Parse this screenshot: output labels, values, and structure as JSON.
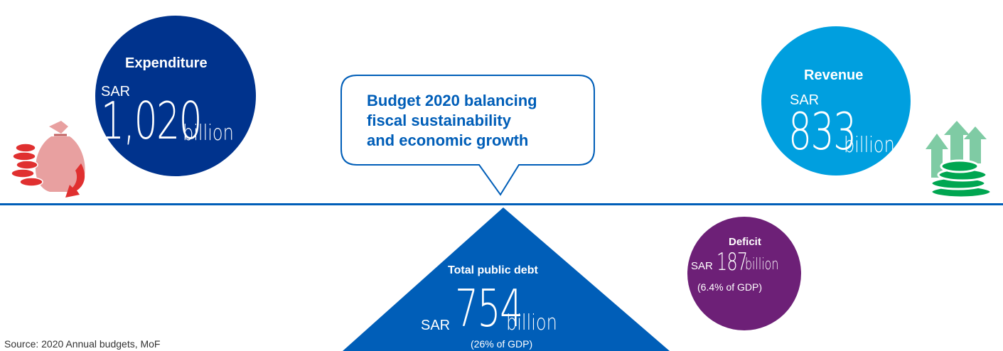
{
  "title": "Budget 2020 balancing fiscal sustainability and economic growth",
  "title_lines": [
    "Budget 2020 balancing",
    "fiscal sustainability",
    "and economic growth"
  ],
  "expenditure": {
    "label": "Expenditure",
    "currency": "SAR",
    "value": "1,020",
    "unit": "billion"
  },
  "revenue": {
    "label": "Revenue",
    "currency": "SAR",
    "value": "833",
    "unit": "billion"
  },
  "deficit": {
    "label": "Deficit",
    "currency": "SAR",
    "value": "187",
    "unit": "billion",
    "note": "(6.4% of GDP)"
  },
  "debt": {
    "label": "Total public debt",
    "currency": "SAR",
    "value": "754",
    "unit": "billion",
    "note": "(26% of GDP)"
  },
  "source": "Source: 2020 Annual budgets, MoF",
  "colors": {
    "expenditure": "#00338d",
    "revenue": "#009fdf",
    "deficit": "#6d2077",
    "debt": "#005eb8",
    "money_bag": "#e8a0a0",
    "down_arrow": "#e03030",
    "coins_green": "#00a651",
    "up_arrow": "#7fcba4"
  },
  "icons": [
    "money-bag-icon",
    "down-arrow-icon",
    "up-arrows-icon",
    "coin-stack-icon"
  ]
}
